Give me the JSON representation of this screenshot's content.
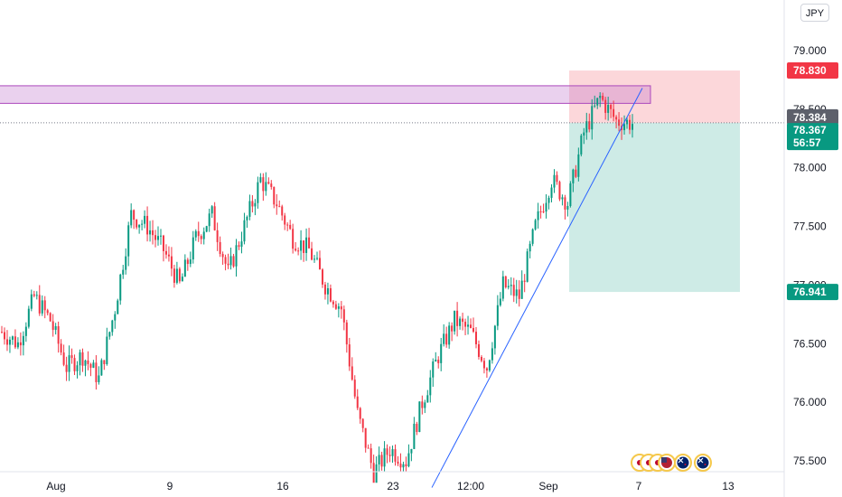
{
  "currency": "JPY",
  "chart_data": {
    "type": "candlestick",
    "y_ticks": [
      "79.000",
      "78.500",
      "78.000",
      "77.500",
      "77.000",
      "76.500",
      "76.000",
      "75.500"
    ],
    "y_tick_values": [
      79.0,
      78.5,
      78.0,
      77.5,
      77.0,
      76.5,
      76.0,
      75.5
    ],
    "x_labels": [
      "Aug",
      "9",
      "16",
      "23",
      "12:00",
      "Sep",
      "7",
      "13"
    ],
    "ylim": [
      75.38,
      79.28
    ],
    "price_labels": {
      "target": {
        "text": "78.830",
        "value": 78.83,
        "color": "#f23645"
      },
      "entry": {
        "text": "78.384",
        "value": 78.384,
        "color": "#5d606b"
      },
      "last": {
        "text": "78.367",
        "value": 78.367,
        "color": "#089981"
      },
      "countdown": {
        "text": "56:57"
      },
      "stop": {
        "text": "76.941",
        "value": 76.941,
        "color": "#089981"
      }
    },
    "resistance_zone": {
      "low": 78.55,
      "high": 78.7
    },
    "position_box": {
      "top": 78.83,
      "entry": 78.384,
      "bottom": 76.941
    },
    "trendline": {
      "from": 75.38,
      "to": 78.68
    },
    "candle_anchor_prices": [
      76.6,
      76.5,
      76.9,
      76.7,
      76.3,
      76.4,
      76.2,
      76.8,
      77.6,
      77.5,
      77.3,
      77.0,
      77.4,
      77.6,
      77.1,
      77.5,
      77.9,
      77.7,
      77.4,
      77.3,
      77.0,
      76.8,
      75.9,
      75.4,
      75.6,
      75.5,
      76.0,
      76.4,
      76.7,
      76.6,
      76.3,
      77.0,
      76.9,
      77.5,
      77.9,
      77.7,
      78.3,
      78.6,
      78.4,
      78.38
    ],
    "event_markers": [
      "jp-flag",
      "jp-flag",
      "jp-flag",
      "us-flag",
      "nz-flag",
      "nz-flag"
    ]
  }
}
